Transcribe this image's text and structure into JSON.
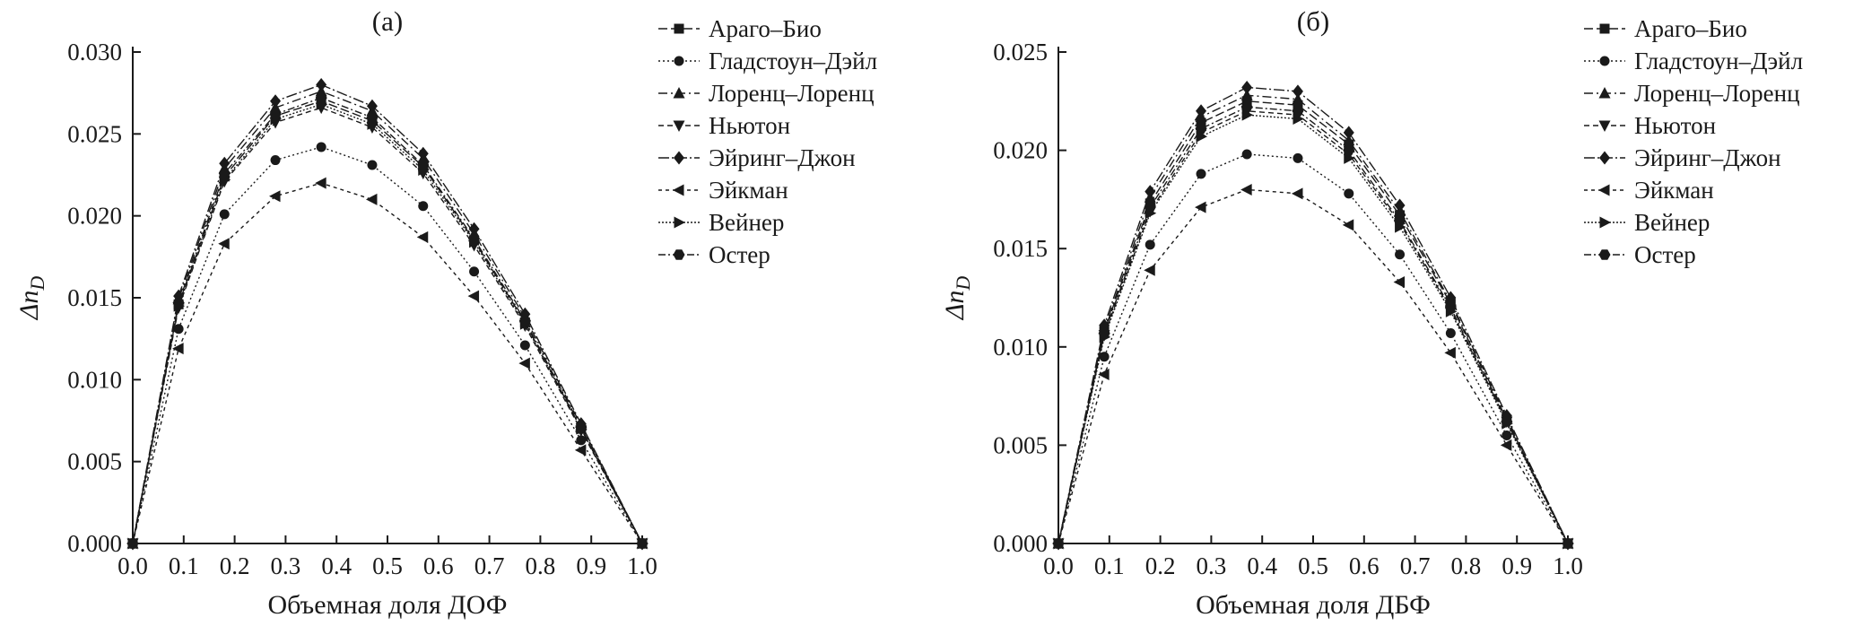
{
  "figure": {
    "background": "#ffffff",
    "line_color": "#1a1a1a",
    "text_color": "#1a1a1a"
  },
  "chart_data": [
    {
      "id": "a",
      "type": "line",
      "title": "(а)",
      "xlabel": "Объемная доля ДОФ",
      "ylabel_main": "Δn",
      "ylabel_sub": "D",
      "xlim": [
        0.0,
        1.0
      ],
      "ylim": [
        0.0,
        0.03
      ],
      "xticks": [
        0.0,
        0.1,
        0.2,
        0.3,
        0.4,
        0.5,
        0.6,
        0.7,
        0.8,
        0.9,
        1.0
      ],
      "yticks": [
        0.0,
        0.005,
        0.01,
        0.015,
        0.02,
        0.025,
        0.03
      ],
      "x_decimals": 1,
      "y_decimals": 3,
      "grid": false,
      "legend_position": "right",
      "x": [
        0.0,
        0.09,
        0.18,
        0.28,
        0.37,
        0.47,
        0.57,
        0.67,
        0.77,
        0.88,
        1.0
      ],
      "series": [
        {
          "name": "Араго–Био",
          "marker": "square",
          "dash": "10 4",
          "values": [
            0.0,
            0.0146,
            0.0224,
            0.0261,
            0.027,
            0.0258,
            0.023,
            0.0185,
            0.0135,
            0.007,
            0.0
          ]
        },
        {
          "name": "Гладстоун–Дэйл",
          "marker": "circle",
          "dash": "2 3",
          "values": [
            0.0,
            0.0131,
            0.0201,
            0.0234,
            0.0242,
            0.0231,
            0.0206,
            0.0166,
            0.0121,
            0.0063,
            0.0
          ]
        },
        {
          "name": "Лоренц–Лоренц",
          "marker": "triangle-up",
          "dash": "10 4 2 4",
          "values": [
            0.0,
            0.0149,
            0.0229,
            0.0266,
            0.0276,
            0.0264,
            0.0235,
            0.0189,
            0.0138,
            0.0072,
            0.0
          ]
        },
        {
          "name": "Ньютон",
          "marker": "triangle-down",
          "dash": "6 4",
          "values": [
            0.0,
            0.0144,
            0.0221,
            0.0257,
            0.0266,
            0.0254,
            0.0226,
            0.0182,
            0.0133,
            0.0069,
            0.0
          ]
        },
        {
          "name": "Эйринг–Джон",
          "marker": "diamond",
          "dash": "12 3 2 3",
          "values": [
            0.0,
            0.0151,
            0.0232,
            0.027,
            0.028,
            0.0267,
            0.0238,
            0.0192,
            0.014,
            0.0073,
            0.0
          ]
        },
        {
          "name": "Эйкман",
          "marker": "triangle-left",
          "dash": "4 4",
          "values": [
            0.0,
            0.0119,
            0.0183,
            0.0212,
            0.022,
            0.021,
            0.0187,
            0.0151,
            0.011,
            0.0057,
            0.0
          ]
        },
        {
          "name": "Вейнер",
          "marker": "triangle-right",
          "dash": "2 2",
          "values": [
            0.0,
            0.0145,
            0.0222,
            0.0259,
            0.0268,
            0.0256,
            0.0228,
            0.0184,
            0.0134,
            0.007,
            0.0
          ]
        },
        {
          "name": "Остер",
          "marker": "hexagon",
          "dash": "8 3 2 3",
          "values": [
            0.0,
            0.0147,
            0.0226,
            0.0262,
            0.0272,
            0.026,
            0.0231,
            0.0186,
            0.0136,
            0.0071,
            0.0
          ]
        }
      ]
    },
    {
      "id": "b",
      "type": "line",
      "title": "(б)",
      "xlabel": "Объемная доля ДБФ",
      "ylabel_main": "Δn",
      "ylabel_sub": "D",
      "xlim": [
        0.0,
        1.0
      ],
      "ylim": [
        0.0,
        0.025
      ],
      "xticks": [
        0.0,
        0.1,
        0.2,
        0.3,
        0.4,
        0.5,
        0.6,
        0.7,
        0.8,
        0.9,
        1.0
      ],
      "yticks": [
        0.0,
        0.005,
        0.01,
        0.015,
        0.02,
        0.025
      ],
      "x_decimals": 1,
      "y_decimals": 3,
      "grid": false,
      "legend_position": "right",
      "x": [
        0.0,
        0.09,
        0.18,
        0.28,
        0.37,
        0.47,
        0.57,
        0.67,
        0.77,
        0.88,
        1.0
      ],
      "series": [
        {
          "name": "Араго–Био",
          "marker": "square",
          "dash": "10 4",
          "values": [
            0.0,
            0.0108,
            0.0173,
            0.0214,
            0.0225,
            0.0223,
            0.0203,
            0.0167,
            0.0122,
            0.0063,
            0.0
          ]
        },
        {
          "name": "Гладстоун–Дэйл",
          "marker": "circle",
          "dash": "2 3",
          "values": [
            0.0,
            0.0095,
            0.0152,
            0.0188,
            0.0198,
            0.0196,
            0.0178,
            0.0147,
            0.0107,
            0.0055,
            0.0
          ]
        },
        {
          "name": "Лоренц–Лоренц",
          "marker": "triangle-up",
          "dash": "10 4 2 4",
          "values": [
            0.0,
            0.0109,
            0.0176,
            0.0217,
            0.0228,
            0.0226,
            0.0205,
            0.0169,
            0.0123,
            0.0064,
            0.0
          ]
        },
        {
          "name": "Ньютон",
          "marker": "triangle-down",
          "dash": "6 4",
          "values": [
            0.0,
            0.0106,
            0.0169,
            0.0209,
            0.022,
            0.0218,
            0.0198,
            0.0163,
            0.0119,
            0.0062,
            0.0
          ]
        },
        {
          "name": "Эйринг–Джон",
          "marker": "diamond",
          "dash": "12 3 2 3",
          "values": [
            0.0,
            0.0111,
            0.0179,
            0.022,
            0.0232,
            0.023,
            0.0209,
            0.0172,
            0.0125,
            0.0065,
            0.0
          ]
        },
        {
          "name": "Эйкман",
          "marker": "triangle-left",
          "dash": "4 4",
          "values": [
            0.0,
            0.0086,
            0.0139,
            0.0171,
            0.018,
            0.0178,
            0.0162,
            0.0133,
            0.0097,
            0.005,
            0.0
          ]
        },
        {
          "name": "Вейнер",
          "marker": "triangle-right",
          "dash": "2 2",
          "values": [
            0.0,
            0.0105,
            0.0168,
            0.0207,
            0.0218,
            0.0216,
            0.0196,
            0.0161,
            0.0118,
            0.0061,
            0.0
          ]
        },
        {
          "name": "Остер",
          "marker": "hexagon",
          "dash": "8 3 2 3",
          "values": [
            0.0,
            0.0107,
            0.0171,
            0.0211,
            0.0222,
            0.022,
            0.02,
            0.0164,
            0.012,
            0.0062,
            0.0
          ]
        }
      ]
    }
  ]
}
